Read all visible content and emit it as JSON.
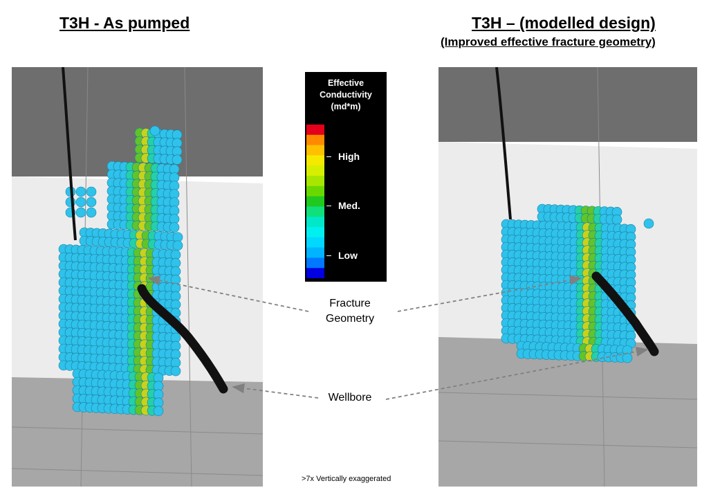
{
  "titles": {
    "left": "T3H - As pumped",
    "right": "T3H – (modelled design)",
    "right_subtitle": "(Improved effective fracture geometry)"
  },
  "legend": {
    "title_lines": [
      "Effective",
      "Conductivity",
      "(md*m)"
    ],
    "labels": {
      "high": "High",
      "med": "Med.",
      "low": "Low"
    },
    "colors": [
      "#e4001a",
      "#ff8a00",
      "#ffc000",
      "#f5e900",
      "#d6ef00",
      "#a8e600",
      "#6ad800",
      "#20c820",
      "#10e07a",
      "#00e8c8",
      "#00f0f0",
      "#00d8ff",
      "#00b4ff",
      "#0078ff",
      "#0000e0"
    ]
  },
  "annotations": {
    "fracture": [
      "Fracture",
      "Geometry"
    ],
    "wellbore": "Wellbore"
  },
  "footnote": ">7x Vertically exaggerated",
  "colors": {
    "sphere_low": "#2fc2ea",
    "sphere_mid": "#24d0a8",
    "sphere_core": "#60c42a",
    "sphere_high": "#c8d21a",
    "wellbore": "#111111",
    "background_dark": "#6e6e6e",
    "background_light": "#ececec",
    "floor": "#a7a7a7"
  }
}
